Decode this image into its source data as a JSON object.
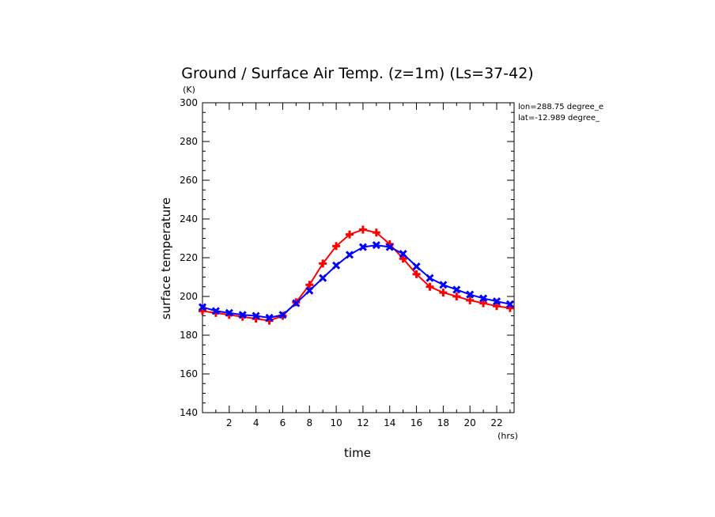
{
  "chart_data": {
    "type": "line",
    "title": "Ground / Surface Air Temp. (z=1m) (Ls=37-42)",
    "ylabel": "surface temperature",
    "yunit": "(K)",
    "xlabel": "time",
    "xunit": "(hrs)",
    "xlim": [
      0,
      23.3
    ],
    "ylim": [
      140,
      300
    ],
    "xticks": [
      "2",
      "4",
      "6",
      "8",
      "10",
      "12",
      "14",
      "16",
      "18",
      "20",
      "22"
    ],
    "yticks": [
      "140",
      "160",
      "180",
      "200",
      "220",
      "240",
      "260",
      "280",
      "300"
    ],
    "annotations": [
      "lon=288.75 degree_e",
      "lat=-12.989 degree_"
    ],
    "colors": {
      "red": "#ff0000",
      "blue": "#0000ff"
    },
    "x": [
      0,
      1,
      2,
      3,
      4,
      5,
      6,
      7,
      8,
      9,
      10,
      11,
      12,
      13,
      14,
      15,
      16,
      17,
      18,
      19,
      20,
      21,
      22,
      23
    ],
    "series": [
      {
        "color": "#ff0000",
        "marker": "plus",
        "values": [
          192.5,
          191.5,
          190.5,
          189.5,
          188.5,
          187.5,
          190.0,
          197.0,
          206.0,
          217.0,
          226.0,
          232.0,
          234.5,
          233.0,
          227.0,
          219.5,
          211.5,
          205.0,
          202.0,
          200.0,
          198.0,
          196.5,
          195.0,
          194.0
        ]
      },
      {
        "color": "#0000ff",
        "marker": "x",
        "values": [
          194.5,
          192.5,
          191.5,
          190.5,
          190.0,
          189.0,
          190.5,
          196.5,
          203.0,
          209.5,
          216.0,
          221.5,
          225.5,
          226.5,
          225.5,
          222.0,
          215.5,
          209.5,
          206.0,
          203.5,
          201.0,
          199.0,
          197.5,
          196.0
        ]
      }
    ]
  }
}
